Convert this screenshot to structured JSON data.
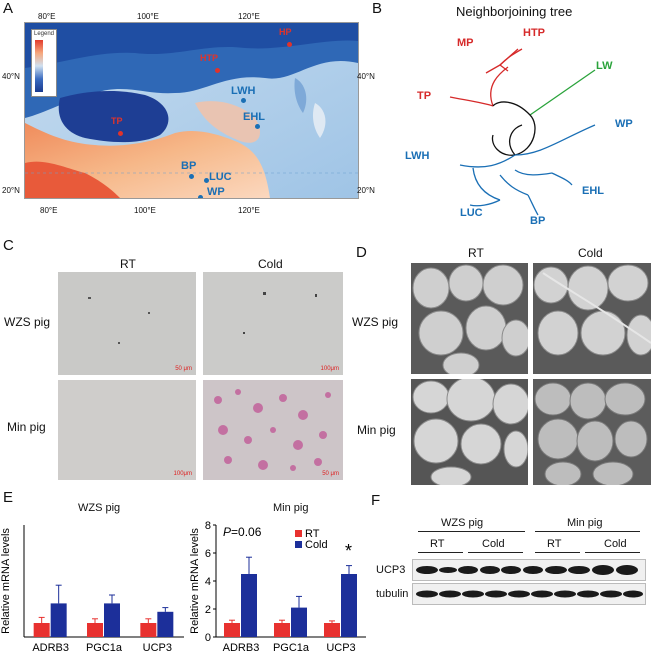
{
  "panels": {
    "A": "A",
    "B": "B",
    "C": "C",
    "D": "D",
    "E": "E",
    "F": "F"
  },
  "map": {
    "top_ticks": [
      "80°E",
      "100°E",
      "120°E"
    ],
    "bottom_ticks": [
      "80°E",
      "100°E",
      "120°E"
    ],
    "left_ticks": [
      "40°N",
      "20°N"
    ],
    "right_ticks": [
      "40°N",
      "20°N"
    ],
    "legend_title": "Legend",
    "sites": [
      {
        "label": "HP",
        "color": "#e0332b"
      },
      {
        "label": "HTP",
        "color": "#e0332b"
      },
      {
        "label": "TP",
        "color": "#e0332b"
      },
      {
        "label": "LWH",
        "color": "#1a6fb5"
      },
      {
        "label": "EHL",
        "color": "#1a6fb5"
      },
      {
        "label": "BP",
        "color": "#1a6fb5"
      },
      {
        "label": "LUC",
        "color": "#1a6fb5"
      },
      {
        "label": "WP",
        "color": "#1a6fb5"
      }
    ]
  },
  "tree": {
    "title": "Neighborjoining tree",
    "leaves": [
      {
        "label": "MP",
        "color": "#d62a2a"
      },
      {
        "label": "HTP",
        "color": "#d62a2a"
      },
      {
        "label": "LW",
        "color": "#2aa33b"
      },
      {
        "label": "TP",
        "color": "#d62a2a"
      },
      {
        "label": "WP",
        "color": "#1a6fb5"
      },
      {
        "label": "LWH",
        "color": "#1a6fb5"
      },
      {
        "label": "EHL",
        "color": "#1a6fb5"
      },
      {
        "label": "LUC",
        "color": "#1a6fb5"
      },
      {
        "label": "BP",
        "color": "#1a6fb5"
      }
    ]
  },
  "histology": {
    "cols": [
      "RT",
      "Cold"
    ],
    "rows": [
      "WZS pig",
      "Min pig"
    ],
    "scale": [
      "50 μm",
      "100μm",
      "100μm",
      "50 μm"
    ]
  },
  "sem": {
    "cols": [
      "RT",
      "Cold"
    ],
    "rows": [
      "WZS pig",
      "Min pig"
    ]
  },
  "charts": {
    "ylabel": "Relative mRNA levels",
    "legend": [
      "RT",
      "Cold"
    ],
    "rt_color": "#e8312f",
    "cold_color": "#1c2f9a",
    "p_value": {
      "prefix": "P",
      "value": "=0.06"
    },
    "sig_star": "*"
  },
  "chart_data": [
    {
      "type": "bar",
      "title": "WZS pig",
      "categories": [
        "ADRB3",
        "PGC1a",
        "UCP3"
      ],
      "ylim": [
        0,
        8
      ],
      "series": [
        {
          "name": "RT",
          "values": [
            1.0,
            1.0,
            1.0
          ],
          "errors": [
            0.4,
            0.3,
            0.3
          ]
        },
        {
          "name": "Cold",
          "values": [
            2.4,
            2.4,
            1.8
          ],
          "errors": [
            1.3,
            0.6,
            0.3
          ]
        }
      ]
    },
    {
      "type": "bar",
      "title": "Min pig",
      "categories": [
        "ADRB3",
        "PGC1a",
        "UCP3"
      ],
      "ylim": [
        0,
        8
      ],
      "yticks": [
        0,
        2,
        4,
        6,
        8
      ],
      "series": [
        {
          "name": "RT",
          "values": [
            1.0,
            1.0,
            1.0
          ],
          "errors": [
            0.2,
            0.2,
            0.15
          ]
        },
        {
          "name": "Cold",
          "values": [
            4.5,
            2.1,
            4.5
          ],
          "errors": [
            1.2,
            0.8,
            0.6
          ]
        }
      ]
    }
  ],
  "blot": {
    "groups": [
      "WZS pig",
      "Min pig"
    ],
    "subgroups": [
      "RT",
      "Cold",
      "RT",
      "Cold"
    ],
    "rows": [
      "UCP3",
      "tubulin"
    ]
  }
}
